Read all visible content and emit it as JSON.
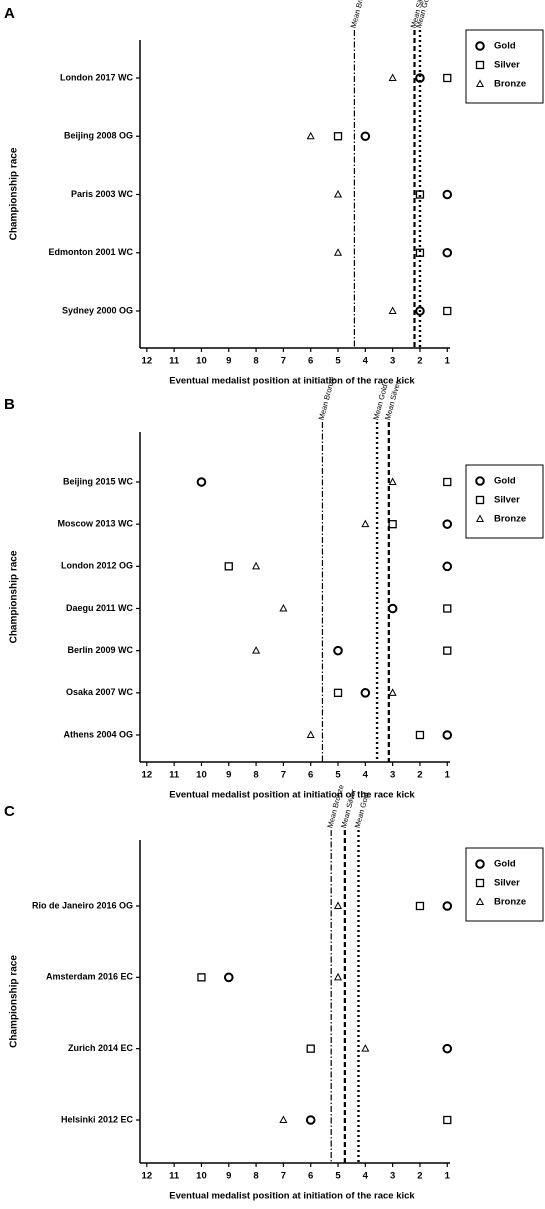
{
  "chart_data": [
    {
      "type": "dot",
      "panel": "A",
      "xlabel": "Eventual medalist position at initiation of the race kick",
      "ylabel": "Championship race",
      "categories": [
        "London 2017 WC",
        "Beijing 2008 OG",
        "Paris 2003 WC",
        "Edmonton 2001 WC",
        "Sydney 2000 OG"
      ],
      "series": [
        {
          "name": "Gold",
          "marker": "circle",
          "color": "#000000",
          "values": [
            2,
            4,
            1,
            1,
            2
          ]
        },
        {
          "name": "Silver",
          "marker": "square",
          "color": "#000000",
          "values": [
            1,
            5,
            2,
            2,
            1
          ]
        },
        {
          "name": "Bronze",
          "marker": "triangle",
          "color": "#000000",
          "values": [
            3,
            6,
            5,
            5,
            3
          ]
        }
      ],
      "mean_lines": [
        {
          "label": "Mean Bronze",
          "value": 4.4,
          "style": "dashdot"
        },
        {
          "label": "Mean Silver",
          "value": 2.2,
          "style": "dashed"
        },
        {
          "label": "Mean Gold",
          "value": 2.0,
          "style": "dotted"
        }
      ],
      "xlim": [
        12.25,
        0.9
      ],
      "xticks": [
        12,
        11,
        10,
        9,
        8,
        7,
        6,
        5,
        4,
        3,
        2,
        1
      ],
      "legend": "upper right"
    },
    {
      "type": "dot",
      "panel": "B",
      "xlabel": "Eventual medalist position at initiation of the race kick",
      "ylabel": "Championship race",
      "categories": [
        "Beijing 2015 WC",
        "Moscow 2013 WC",
        "London 2012 OG",
        "Daegu 2011 WC",
        "Berlin 2009 WC",
        "Osaka 2007 WC",
        "Athens 2004 OG"
      ],
      "series": [
        {
          "name": "Gold",
          "marker": "circle",
          "color": "#000000",
          "values": [
            10,
            1,
            1,
            3,
            5,
            4,
            1
          ]
        },
        {
          "name": "Silver",
          "marker": "square",
          "color": "#000000",
          "values": [
            1,
            3,
            9,
            1,
            1,
            5,
            2
          ]
        },
        {
          "name": "Bronze",
          "marker": "triangle",
          "color": "#000000",
          "values": [
            3,
            4,
            8,
            7,
            8,
            3,
            6
          ]
        }
      ],
      "mean_lines": [
        {
          "label": "Mean Bronze",
          "value": 5.57,
          "style": "dashdot"
        },
        {
          "label": "Mean Gold",
          "value": 3.57,
          "style": "dotted"
        },
        {
          "label": "Mean Silver",
          "value": 3.14,
          "style": "dashed"
        }
      ],
      "xlim": [
        12.25,
        0.9
      ],
      "xticks": [
        12,
        11,
        10,
        9,
        8,
        7,
        6,
        5,
        4,
        3,
        2,
        1
      ],
      "legend": "upper right"
    },
    {
      "type": "dot",
      "panel": "C",
      "xlabel": "Eventual medalist position at initiation of the race kick",
      "ylabel": "Championship race",
      "categories": [
        "Rio de Janeiro 2016 OG",
        "Amsterdam 2016 EC",
        "Zurich 2014 EC",
        "Helsinki 2012 EC"
      ],
      "series": [
        {
          "name": "Gold",
          "marker": "circle",
          "color": "#000000",
          "values": [
            1,
            9,
            1,
            6
          ]
        },
        {
          "name": "Silver",
          "marker": "square",
          "color": "#000000",
          "values": [
            2,
            10,
            6,
            1
          ]
        },
        {
          "name": "Bronze",
          "marker": "triangle",
          "color": "#000000",
          "values": [
            5,
            5,
            4,
            7
          ]
        }
      ],
      "mean_lines": [
        {
          "label": "Mean Bronze",
          "value": 5.25,
          "style": "dashdot"
        },
        {
          "label": "Mean Silver",
          "value": 4.75,
          "style": "dashed"
        },
        {
          "label": "Mean Gold",
          "value": 4.25,
          "style": "dotted"
        }
      ],
      "xlim": [
        12.25,
        0.9
      ],
      "xticks": [
        12,
        11,
        10,
        9,
        8,
        7,
        6,
        5,
        4,
        3,
        2,
        1
      ],
      "legend": "upper right"
    }
  ]
}
